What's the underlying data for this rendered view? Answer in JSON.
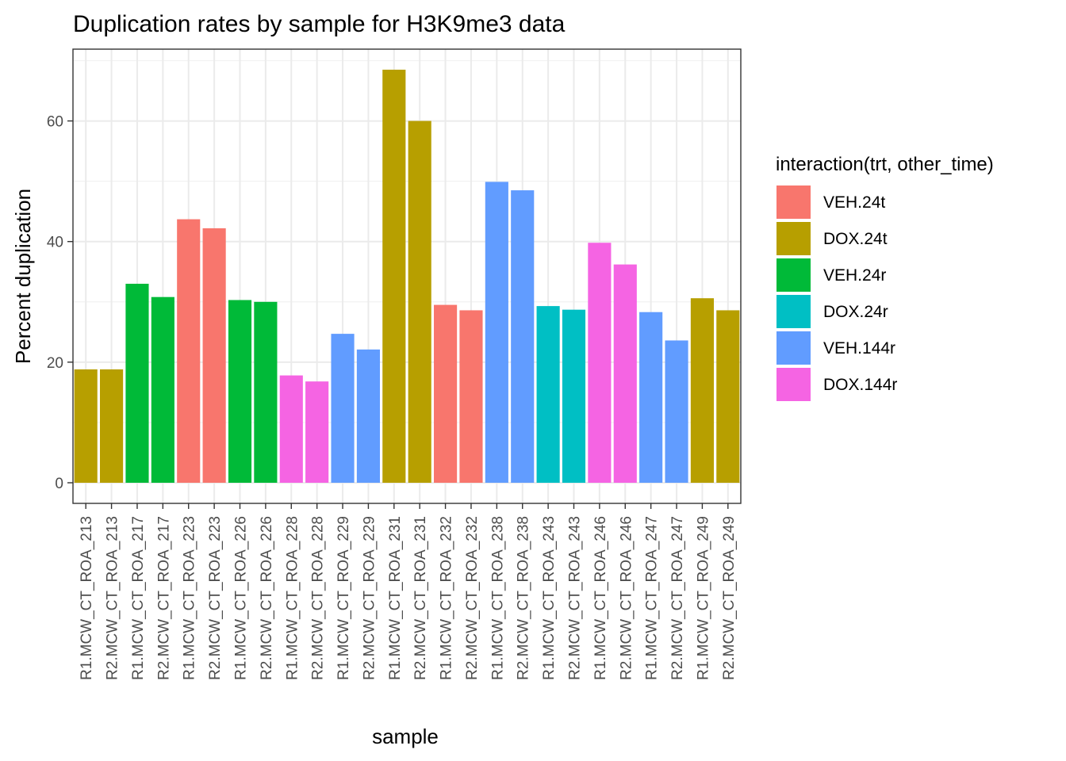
{
  "chart_data": {
    "type": "bar",
    "title": "Duplication rates by sample for H3K9me3 data",
    "xlabel": "sample",
    "ylabel": "Percent duplication",
    "ylim": [
      0,
      71.5
    ],
    "yticks": [
      0,
      20,
      40,
      60
    ],
    "grid": true,
    "legend": {
      "title": "interaction(trt, other_time)",
      "position": "right",
      "entries": [
        {
          "label": "VEH.24t",
          "color": "#F8766D"
        },
        {
          "label": "DOX.24t",
          "color": "#B79F00"
        },
        {
          "label": "VEH.24r",
          "color": "#00BA38"
        },
        {
          "label": "DOX.24r",
          "color": "#00BFC4"
        },
        {
          "label": "VEH.144r",
          "color": "#619CFF"
        },
        {
          "label": "DOX.144r",
          "color": "#F564E3"
        }
      ]
    },
    "categories": [
      "R1.MCW_CT_ROA_213",
      "R2.MCW_CT_ROA_213",
      "R1.MCW_CT_ROA_217",
      "R2.MCW_CT_ROA_217",
      "R1.MCW_CT_ROA_223",
      "R2.MCW_CT_ROA_223",
      "R1.MCW_CT_ROA_226",
      "R2.MCW_CT_ROA_226",
      "R1.MCW_CT_ROA_228",
      "R2.MCW_CT_ROA_228",
      "R1.MCW_CT_ROA_229",
      "R2.MCW_CT_ROA_229",
      "R1.MCW_CT_ROA_231",
      "R2.MCW_CT_ROA_231",
      "R1.MCW_CT_ROA_232",
      "R2.MCW_CT_ROA_232",
      "R1.MCW_CT_ROA_238",
      "R2.MCW_CT_ROA_238",
      "R1.MCW_CT_ROA_243",
      "R2.MCW_CT_ROA_243",
      "R1.MCW_CT_ROA_246",
      "R2.MCW_CT_ROA_246",
      "R1.MCW_CT_ROA_247",
      "R2.MCW_CT_ROA_247",
      "R1.MCW_CT_ROA_249",
      "R2.MCW_CT_ROA_249"
    ],
    "values": [
      18.8,
      18.8,
      33.0,
      30.8,
      43.7,
      42.2,
      30.3,
      30.0,
      17.8,
      16.8,
      24.7,
      22.1,
      68.5,
      60.0,
      29.5,
      28.6,
      49.9,
      48.5,
      29.3,
      28.7,
      39.8,
      36.2,
      28.3,
      23.6,
      30.6,
      28.6
    ],
    "groups": [
      "DOX.24t",
      "DOX.24t",
      "VEH.24r",
      "VEH.24r",
      "VEH.24t",
      "VEH.24t",
      "VEH.24r",
      "VEH.24r",
      "DOX.144r",
      "DOX.144r",
      "VEH.144r",
      "VEH.144r",
      "DOX.24t",
      "DOX.24t",
      "VEH.24t",
      "VEH.24t",
      "VEH.144r",
      "VEH.144r",
      "DOX.24r",
      "DOX.24r",
      "DOX.144r",
      "DOX.144r",
      "VEH.144r",
      "VEH.144r",
      "DOX.24t",
      "DOX.24t"
    ]
  }
}
